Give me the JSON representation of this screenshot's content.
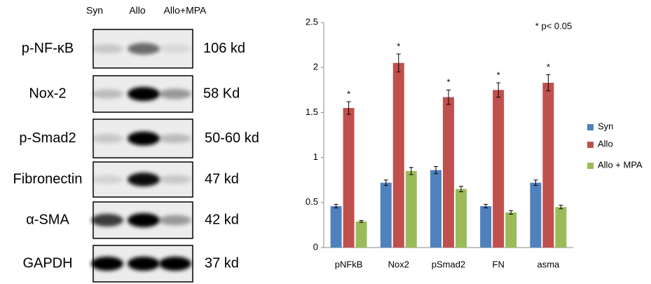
{
  "blot": {
    "lanes": [
      "Syn",
      "Allo",
      "Allo+MPA"
    ],
    "rows": [
      {
        "protein": "p-NF-κB",
        "size": "106 kd"
      },
      {
        "protein": "Nox-2",
        "size": "58 Kd"
      },
      {
        "protein": "p-Smad2",
        "size": "50-60 kd"
      },
      {
        "protein": "Fibronectin",
        "size": "47 kd"
      },
      {
        "protein": "α-SMA",
        "size": "42 kd"
      },
      {
        "protein": "GAPDH",
        "size": "37 kd"
      }
    ]
  },
  "chart_data": {
    "type": "bar",
    "note": "* p< 0.05",
    "categories": [
      "pNFkB",
      "Nox2",
      "pSmad2",
      "FN",
      "asma"
    ],
    "series": [
      {
        "name": "Syn",
        "color": "#4f81bd",
        "values": [
          0.46,
          0.72,
          0.86,
          0.46,
          0.72
        ],
        "errors": [
          0.02,
          0.03,
          0.04,
          0.02,
          0.03
        ]
      },
      {
        "name": "Allo",
        "color": "#c0504d",
        "values": [
          1.55,
          2.05,
          1.67,
          1.75,
          1.83
        ],
        "errors": [
          0.07,
          0.1,
          0.08,
          0.08,
          0.09
        ]
      },
      {
        "name": "Allo + MPA",
        "color": "#9bbb59",
        "values": [
          0.29,
          0.85,
          0.65,
          0.39,
          0.45
        ],
        "errors": [
          0.01,
          0.04,
          0.03,
          0.02,
          0.02
        ]
      }
    ],
    "significance": [
      "*",
      "*",
      "*",
      "*",
      "*"
    ],
    "ylim": [
      0,
      2.5
    ],
    "yticks": [
      0,
      0.5,
      1,
      1.5,
      2,
      2.5
    ],
    "grid": false,
    "legend": "right"
  }
}
